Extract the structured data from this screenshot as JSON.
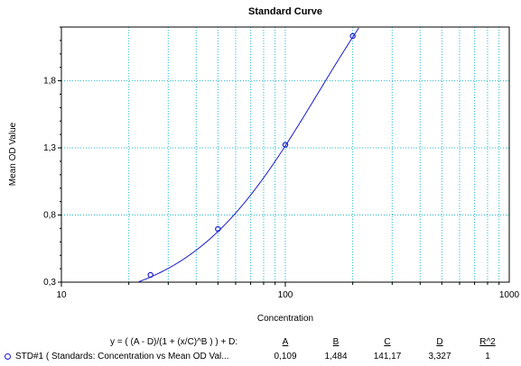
{
  "chart_data": {
    "type": "scatter",
    "title": "Standard Curve",
    "xlabel": "Concentration",
    "ylabel": "Mean OD Value",
    "x_scale": "log",
    "xlim": [
      10,
      1000
    ],
    "ylim": [
      0.3,
      2.2
    ],
    "x_tick_labels": [
      "10",
      "100",
      "1000"
    ],
    "y_tick_labels": [
      "0,3",
      "0,8",
      "1,3",
      "1,8"
    ],
    "y_ticks": [
      0.3,
      0.8,
      1.3,
      1.8
    ],
    "grid": true,
    "colors": {
      "series": "#1a1acc",
      "grid": "#26b7c9",
      "axis": "#000000"
    },
    "series": [
      {
        "name": "STD#1 ( Standards: Concentration vs Mean OD Val...",
        "points": [
          {
            "x": 25,
            "y": 0.354
          },
          {
            "x": 50,
            "y": 0.696
          },
          {
            "x": 100,
            "y": 1.323
          },
          {
            "x": 200,
            "y": 2.133
          }
        ],
        "fit": {
          "model": "4PL",
          "A": 0.109,
          "B": 1.484,
          "C": 141.17,
          "D": 3.327,
          "R2": 1
        }
      }
    ]
  },
  "legend": {
    "equation": "y = ( (A - D)/(1 + (x/C)^B ) ) + D:",
    "headers": [
      "A",
      "B",
      "C",
      "D",
      "R^2"
    ],
    "series_label": "STD#1 ( Standards: Concentration vs Mean OD Val...",
    "values": [
      "0,109",
      "1,484",
      "141,17",
      "3,327",
      "1"
    ]
  }
}
